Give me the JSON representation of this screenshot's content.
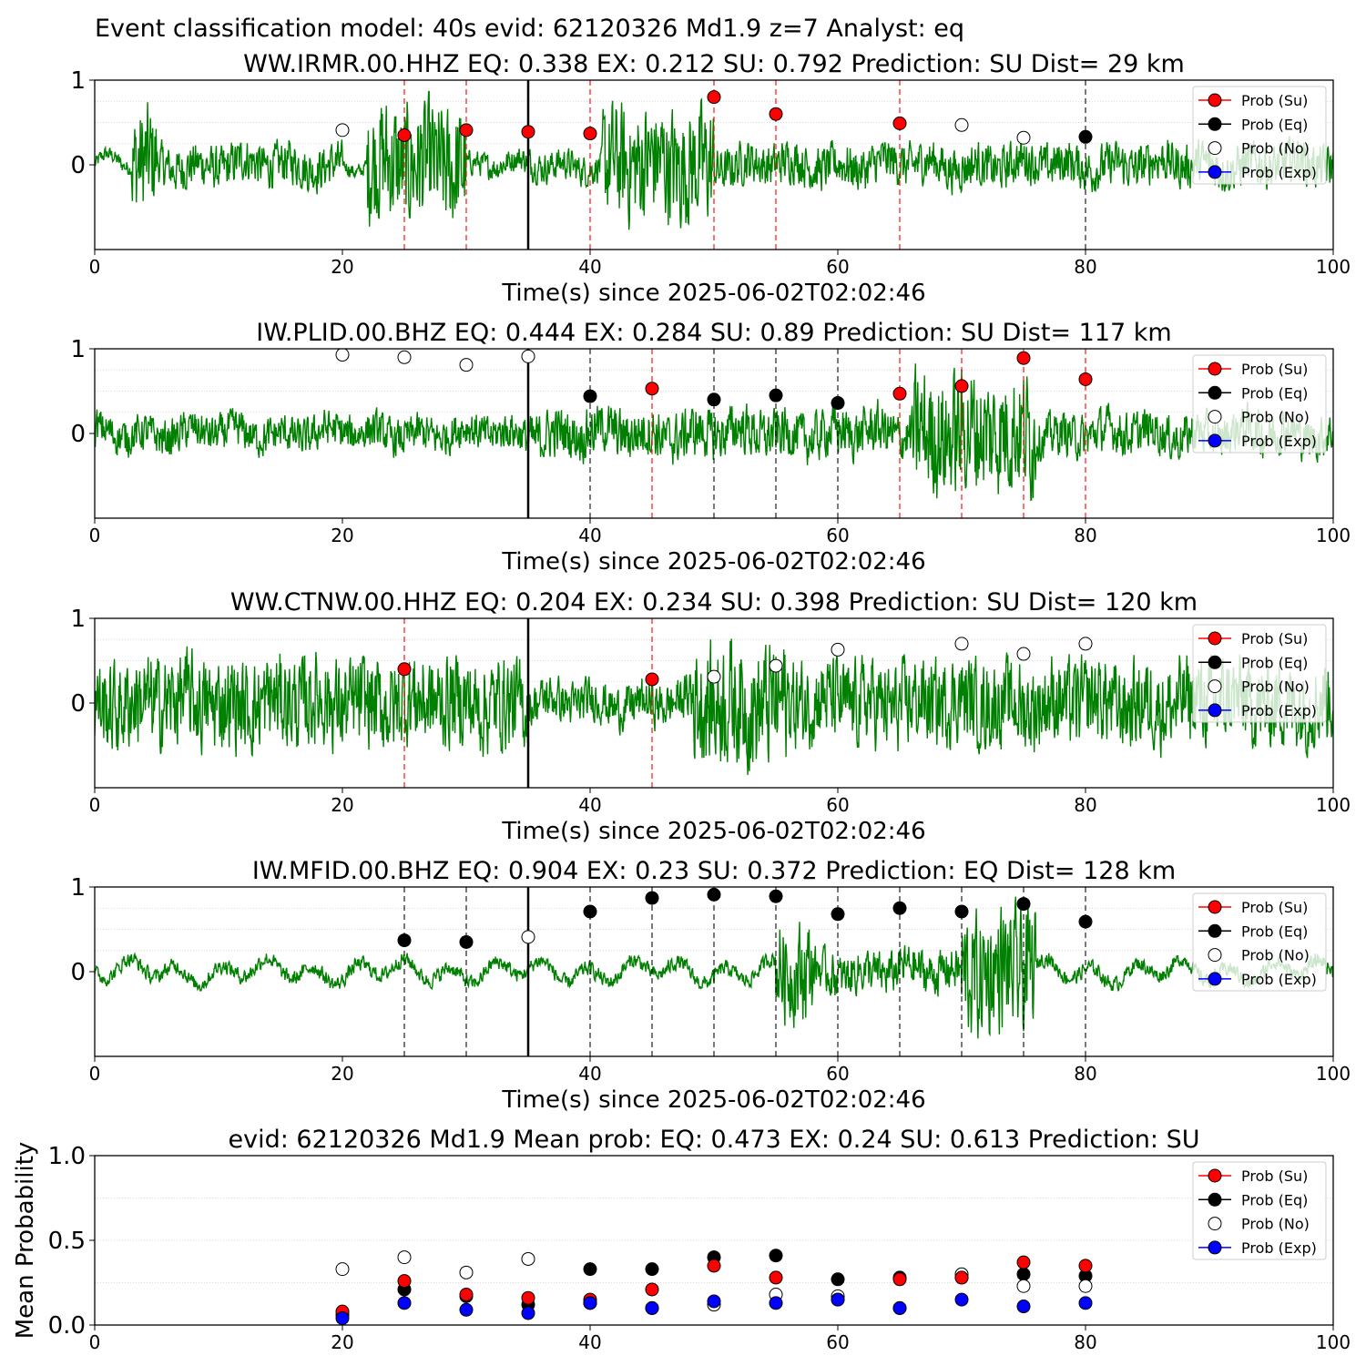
{
  "figure": {
    "suptitle": "Event classification model: 40s evid: 62120326 Md1.9 z=7 Analyst: eq"
  },
  "colors": {
    "waveform": "#008000",
    "su": "#ff0000",
    "eq": "#000000",
    "no": "#ffffff",
    "exp": "#0000ff",
    "line_su": "#ff0000",
    "line_eq": "#000000",
    "pick_line": "#000000",
    "grid": "#cccccc"
  },
  "legend": [
    {
      "key": "su",
      "label": "Prob (Su)"
    },
    {
      "key": "eq",
      "label": "Prob (Eq)"
    },
    {
      "key": "no",
      "label": "Prob (No)"
    },
    {
      "key": "exp",
      "label": "Prob (Exp)"
    }
  ],
  "chart_data": [
    {
      "type": "scatter",
      "title": "WW.IRMR.00.HHZ   EQ: 0.338  EX: 0.212  SU: 0.792   Prediction: SU    Dist= 29 km",
      "xlabel": "Time(s) since 2025-06-02T02:02:46",
      "ylabel": "",
      "xlim": [
        0,
        100
      ],
      "ylim": [
        -1,
        1
      ],
      "xticks": [
        "0",
        "20",
        "40",
        "60",
        "80",
        "100"
      ],
      "yticks": [
        "0",
        "1"
      ],
      "pick_time": 35,
      "legend_position": "top-right",
      "waveform": {
        "segments": [
          [
            0,
            25,
            0.12
          ],
          [
            3,
            5,
            0.9
          ],
          [
            5,
            20,
            0.35
          ],
          [
            22,
            30,
            1.0
          ],
          [
            30,
            35,
            0.2
          ],
          [
            35,
            41,
            0.25
          ],
          [
            41,
            50,
            0.95
          ],
          [
            50,
            100,
            0.35
          ]
        ]
      },
      "points": [
        {
          "x": 20,
          "y": 0.41,
          "class": "no"
        },
        {
          "x": 25,
          "y": 0.35,
          "class": "su"
        },
        {
          "x": 30,
          "y": 0.41,
          "class": "su"
        },
        {
          "x": 35,
          "y": 0.39,
          "class": "su"
        },
        {
          "x": 40,
          "y": 0.37,
          "class": "su"
        },
        {
          "x": 50,
          "y": 0.8,
          "class": "su"
        },
        {
          "x": 55,
          "y": 0.6,
          "class": "su"
        },
        {
          "x": 65,
          "y": 0.49,
          "class": "su"
        },
        {
          "x": 70,
          "y": 0.47,
          "class": "no"
        },
        {
          "x": 75,
          "y": 0.32,
          "class": "no"
        },
        {
          "x": 80,
          "y": 0.33,
          "class": "eq"
        }
      ],
      "window_lines": [
        {
          "x": 25,
          "class": "su"
        },
        {
          "x": 30,
          "class": "su"
        },
        {
          "x": 40,
          "class": "su"
        },
        {
          "x": 50,
          "class": "su"
        },
        {
          "x": 55,
          "class": "su"
        },
        {
          "x": 65,
          "class": "su"
        },
        {
          "x": 80,
          "class": "eq"
        }
      ]
    },
    {
      "type": "scatter",
      "title": "IW.PLID.00.BHZ   EQ: 0.444  EX: 0.284  SU: 0.89   Prediction: SU    Dist= 117 km",
      "xlabel": "Time(s) since 2025-06-02T02:02:46",
      "ylabel": "",
      "xlim": [
        0,
        100
      ],
      "ylim": [
        -1,
        1
      ],
      "xticks": [
        "0",
        "20",
        "40",
        "60",
        "80",
        "100"
      ],
      "yticks": [
        "0",
        "1"
      ],
      "pick_time": 35,
      "legend_position": "top-right",
      "waveform": {
        "segments": [
          [
            0,
            35,
            0.3
          ],
          [
            35,
            66,
            0.4
          ],
          [
            66,
            76,
            1.0
          ],
          [
            76,
            100,
            0.35
          ]
        ]
      },
      "points": [
        {
          "x": 20,
          "y": 0.93,
          "class": "no"
        },
        {
          "x": 25,
          "y": 0.9,
          "class": "no"
        },
        {
          "x": 30,
          "y": 0.81,
          "class": "no"
        },
        {
          "x": 35,
          "y": 0.91,
          "class": "no"
        },
        {
          "x": 40,
          "y": 0.44,
          "class": "eq"
        },
        {
          "x": 45,
          "y": 0.53,
          "class": "su"
        },
        {
          "x": 50,
          "y": 0.4,
          "class": "eq"
        },
        {
          "x": 55,
          "y": 0.45,
          "class": "eq"
        },
        {
          "x": 60,
          "y": 0.36,
          "class": "eq"
        },
        {
          "x": 65,
          "y": 0.47,
          "class": "su"
        },
        {
          "x": 70,
          "y": 0.56,
          "class": "su"
        },
        {
          "x": 75,
          "y": 0.89,
          "class": "su"
        },
        {
          "x": 80,
          "y": 0.64,
          "class": "su"
        }
      ],
      "window_lines": [
        {
          "x": 40,
          "class": "eq"
        },
        {
          "x": 45,
          "class": "su"
        },
        {
          "x": 50,
          "class": "eq"
        },
        {
          "x": 55,
          "class": "eq"
        },
        {
          "x": 60,
          "class": "eq"
        },
        {
          "x": 65,
          "class": "su"
        },
        {
          "x": 70,
          "class": "su"
        },
        {
          "x": 75,
          "class": "su"
        },
        {
          "x": 80,
          "class": "su"
        }
      ]
    },
    {
      "type": "scatter",
      "title": "WW.CTNW.00.HHZ   EQ: 0.204  EX: 0.234  SU: 0.398   Prediction: SU    Dist= 120 km",
      "xlabel": "Time(s) since 2025-06-02T02:02:46",
      "ylabel": "",
      "xlim": [
        0,
        100
      ],
      "ylim": [
        -1,
        1
      ],
      "xticks": [
        "0",
        "20",
        "40",
        "60",
        "80",
        "100"
      ],
      "yticks": [
        "0",
        "1"
      ],
      "pick_time": 35,
      "legend_position": "top-right",
      "waveform": {
        "segments": [
          [
            0,
            35,
            0.75
          ],
          [
            35,
            48,
            0.35
          ],
          [
            48,
            56,
            1.0
          ],
          [
            56,
            100,
            0.7
          ]
        ]
      },
      "points": [
        {
          "x": 25,
          "y": 0.4,
          "class": "su"
        },
        {
          "x": 45,
          "y": 0.28,
          "class": "su"
        },
        {
          "x": 50,
          "y": 0.31,
          "class": "no"
        },
        {
          "x": 55,
          "y": 0.44,
          "class": "no"
        },
        {
          "x": 60,
          "y": 0.63,
          "class": "no"
        },
        {
          "x": 70,
          "y": 0.7,
          "class": "no"
        },
        {
          "x": 75,
          "y": 0.58,
          "class": "no"
        },
        {
          "x": 80,
          "y": 0.7,
          "class": "no"
        }
      ],
      "window_lines": [
        {
          "x": 25,
          "class": "su"
        },
        {
          "x": 45,
          "class": "su"
        }
      ]
    },
    {
      "type": "scatter",
      "title": "IW.MFID.00.BHZ   EQ: 0.904  EX: 0.23  SU: 0.372   Prediction: EQ    Dist= 128 km",
      "xlabel": "Time(s) since 2025-06-02T02:02:46",
      "ylabel": "",
      "xlim": [
        0,
        100
      ],
      "ylim": [
        -1,
        1
      ],
      "xticks": [
        "0",
        "20",
        "40",
        "60",
        "80",
        "100"
      ],
      "yticks": [
        "0",
        "1"
      ],
      "pick_time": 35,
      "legend_position": "top-right",
      "waveform": {
        "segments": [
          [
            0,
            55,
            0.12
          ],
          [
            55,
            58,
            0.8
          ],
          [
            58,
            70,
            0.35
          ],
          [
            70,
            76,
            1.0
          ],
          [
            76,
            100,
            0.12
          ]
        ]
      },
      "points": [
        {
          "x": 25,
          "y": 0.37,
          "class": "eq"
        },
        {
          "x": 30,
          "y": 0.35,
          "class": "eq"
        },
        {
          "x": 35,
          "y": 0.41,
          "class": "no"
        },
        {
          "x": 40,
          "y": 0.71,
          "class": "eq"
        },
        {
          "x": 45,
          "y": 0.87,
          "class": "eq"
        },
        {
          "x": 50,
          "y": 0.91,
          "class": "eq"
        },
        {
          "x": 55,
          "y": 0.89,
          "class": "eq"
        },
        {
          "x": 60,
          "y": 0.68,
          "class": "eq"
        },
        {
          "x": 65,
          "y": 0.75,
          "class": "eq"
        },
        {
          "x": 70,
          "y": 0.71,
          "class": "eq"
        },
        {
          "x": 75,
          "y": 0.8,
          "class": "eq"
        },
        {
          "x": 80,
          "y": 0.59,
          "class": "eq"
        }
      ],
      "window_lines": [
        {
          "x": 25,
          "class": "eq"
        },
        {
          "x": 30,
          "class": "eq"
        },
        {
          "x": 40,
          "class": "eq"
        },
        {
          "x": 45,
          "class": "eq"
        },
        {
          "x": 50,
          "class": "eq"
        },
        {
          "x": 55,
          "class": "eq"
        },
        {
          "x": 60,
          "class": "eq"
        },
        {
          "x": 65,
          "class": "eq"
        },
        {
          "x": 70,
          "class": "eq"
        },
        {
          "x": 75,
          "class": "eq"
        },
        {
          "x": 80,
          "class": "eq"
        }
      ]
    },
    {
      "type": "scatter",
      "title": "evid: 62120326  Md1.9   Mean prob:   EQ: 0.473  EX: 0.24  SU: 0.613   Prediction: SU",
      "xlabel": "",
      "ylabel": "Mean Probability",
      "xlim": [
        0,
        100
      ],
      "ylim": [
        0,
        1
      ],
      "xticks": [
        "0",
        "20",
        "40",
        "60",
        "80",
        "100"
      ],
      "yticks": [
        "0.0",
        "0.5",
        "1.0"
      ],
      "legend_position": "top-right",
      "series": [
        {
          "key": "eq",
          "x": [
            20,
            25,
            30,
            35,
            40,
            45,
            50,
            55,
            60,
            65,
            70,
            75,
            80
          ],
          "values": [
            0.06,
            0.21,
            0.17,
            0.12,
            0.33,
            0.33,
            0.4,
            0.41,
            0.27,
            0.28,
            0.28,
            0.3,
            0.29
          ]
        },
        {
          "key": "no",
          "x": [
            20,
            25,
            30,
            35,
            40,
            45,
            50,
            55,
            60,
            65,
            70,
            75,
            80
          ],
          "values": [
            0.33,
            0.4,
            0.31,
            0.39,
            0.13,
            0.1,
            0.12,
            0.18,
            0.17,
            0.1,
            0.3,
            0.23,
            0.23
          ]
        },
        {
          "key": "su",
          "x": [
            20,
            25,
            30,
            35,
            40,
            45,
            50,
            55,
            60,
            65,
            70,
            75,
            80
          ],
          "values": [
            0.08,
            0.26,
            0.18,
            0.16,
            0.15,
            0.21,
            0.35,
            0.28,
            0.15,
            0.27,
            0.28,
            0.37,
            0.35
          ]
        },
        {
          "key": "exp",
          "x": [
            20,
            25,
            30,
            35,
            40,
            45,
            50,
            55,
            60,
            65,
            70,
            75,
            80
          ],
          "values": [
            0.04,
            0.13,
            0.09,
            0.07,
            0.13,
            0.1,
            0.14,
            0.13,
            0.15,
            0.1,
            0.15,
            0.11,
            0.13
          ]
        }
      ]
    }
  ]
}
